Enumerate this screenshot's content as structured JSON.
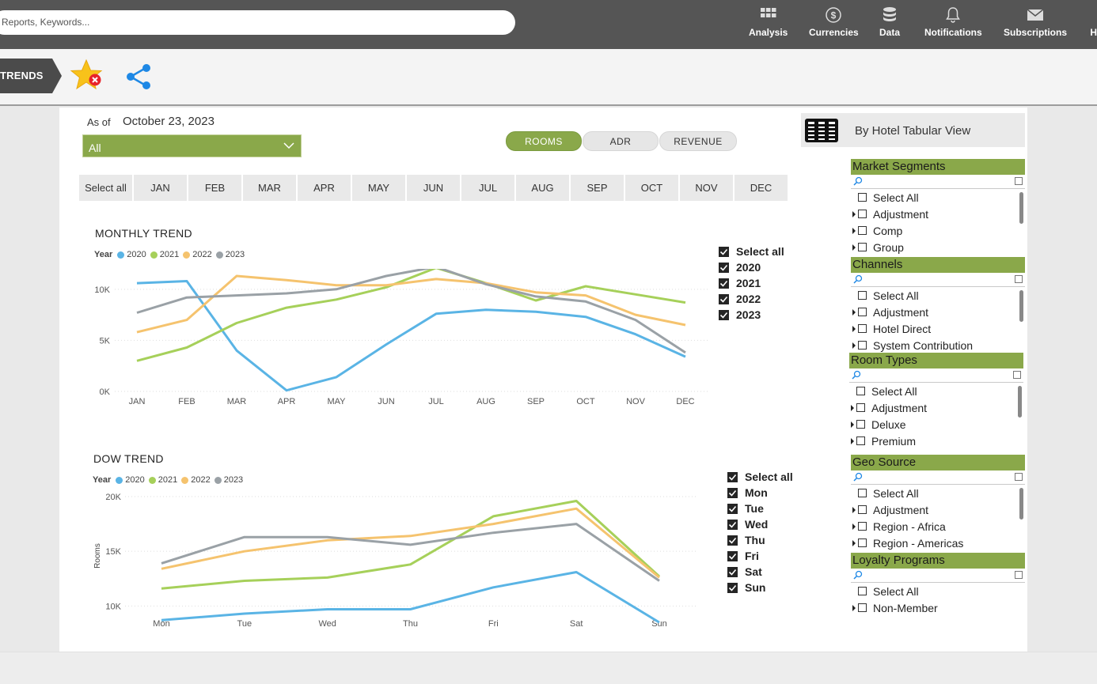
{
  "topbar": {
    "search_placeholder": "Reports, Keywords...",
    "nav": [
      {
        "label": "Analysis",
        "icon": "grid-icon"
      },
      {
        "label": "Currencies",
        "icon": "dollar-icon"
      },
      {
        "label": "Data",
        "icon": "database-icon"
      },
      {
        "label": "Notifications",
        "icon": "bell-icon"
      },
      {
        "label": "Subscriptions",
        "icon": "envelope-icon"
      },
      {
        "label": "He",
        "icon": "help-icon"
      }
    ]
  },
  "breadcrumb": {
    "label": "TRENDS"
  },
  "filters": {
    "as_of_label": "As of",
    "as_of_date": "October 23, 2023",
    "dropdown_value": "All",
    "toggles": [
      "ROOMS",
      "ADR",
      "REVENUE"
    ],
    "active_toggle": "ROOMS",
    "months": [
      "Select all",
      "JAN",
      "FEB",
      "MAR",
      "APR",
      "MAY",
      "JUN",
      "JUL",
      "AUG",
      "SEP",
      "OCT",
      "NOV",
      "DEC"
    ]
  },
  "colors": {
    "2020": "#5ab4e5",
    "2021": "#a6d05a",
    "2022": "#f5c36e",
    "2023": "#9aa1a6",
    "accent": "#8aa84a"
  },
  "monthly_checks": [
    "Select all",
    "2020",
    "2021",
    "2022",
    "2023"
  ],
  "dow_checks": [
    "Select all",
    "Mon",
    "Tue",
    "Wed",
    "Thu",
    "Fri",
    "Sat",
    "Sun"
  ],
  "chart_data": [
    {
      "type": "line",
      "title": "MONTHLY TREND",
      "legend_title": "Year",
      "x": [
        "JAN",
        "FEB",
        "MAR",
        "APR",
        "MAY",
        "JUN",
        "JUL",
        "AUG",
        "SEP",
        "OCT",
        "NOV",
        "DEC"
      ],
      "yticks": [
        {
          "label": "0K",
          "value": 0
        },
        {
          "label": "5K",
          "value": 5000
        },
        {
          "label": "10K",
          "value": 10000
        }
      ],
      "ylim": [
        0,
        12000
      ],
      "ylabel": "",
      "grid": true,
      "series": [
        {
          "name": "2020",
          "values": [
            10600,
            10800,
            4000,
            100,
            1400,
            4600,
            7600,
            8000,
            7800,
            7300,
            5600,
            3400
          ]
        },
        {
          "name": "2021",
          "values": [
            3000,
            4300,
            6700,
            8200,
            9000,
            10200,
            12100,
            10600,
            8900,
            10300,
            9500,
            8700
          ]
        },
        {
          "name": "2022",
          "values": [
            5800,
            7000,
            11300,
            10900,
            10400,
            10400,
            11000,
            10600,
            9700,
            9400,
            7500,
            6500
          ]
        },
        {
          "name": "2023",
          "values": [
            7700,
            9200,
            9400,
            9600,
            10000,
            11300,
            12200,
            10500,
            9300,
            8800,
            7000,
            3800
          ]
        }
      ]
    },
    {
      "type": "line",
      "title": "DOW TREND",
      "legend_title": "Year",
      "x": [
        "Mon",
        "Tue",
        "Wed",
        "Thu",
        "Fri",
        "Sat",
        "Sun"
      ],
      "yticks": [
        {
          "label": "10K",
          "value": 10000
        },
        {
          "label": "15K",
          "value": 15000
        },
        {
          "label": "20K",
          "value": 20000
        }
      ],
      "ylim": [
        8000,
        20000
      ],
      "ylabel": "Rooms",
      "grid": true,
      "series": [
        {
          "name": "2020",
          "values": [
            8700,
            9300,
            9700,
            9700,
            11700,
            13100,
            8500
          ]
        },
        {
          "name": "2021",
          "values": [
            11600,
            12300,
            12600,
            13800,
            18200,
            19600,
            12700
          ]
        },
        {
          "name": "2022",
          "values": [
            13400,
            15000,
            16000,
            16400,
            17500,
            18900,
            12600
          ]
        },
        {
          "name": "2023",
          "values": [
            13900,
            16300,
            16300,
            15600,
            16700,
            17500,
            12300
          ]
        }
      ]
    }
  ],
  "tabular_view": {
    "label": "By Hotel Tabular View"
  },
  "slicers": [
    {
      "title": "Market Segments",
      "items": [
        "Select All",
        "Adjustment",
        "Comp",
        "Group"
      ]
    },
    {
      "title": "Channels",
      "items": [
        "Select All",
        "Adjustment",
        "Hotel Direct",
        "System Contribution"
      ]
    },
    {
      "title": "Room Types",
      "items": [
        "Select All",
        "Adjustment",
        "Deluxe",
        "Premium"
      ]
    },
    {
      "title": "Geo Source",
      "items": [
        "Select All",
        "Adjustment",
        "Region - Africa",
        "Region - Americas"
      ]
    },
    {
      "title": "Loyalty Programs",
      "items": [
        "Select All",
        "Non-Member"
      ]
    }
  ]
}
